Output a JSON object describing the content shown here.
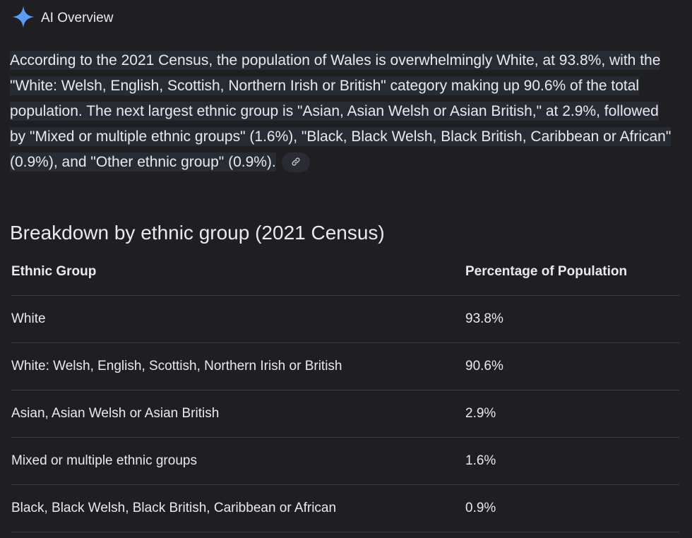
{
  "header": {
    "icon": "sparkle-icon",
    "title": "AI Overview",
    "accent": "#5b9cf6"
  },
  "paragraph": "According to the 2021 Census, the population of Wales is overwhelmingly White, at 93.8%, with the \"White: Welsh, English, Scottish, Northern Irish or British\" category making up 90.6% of the total population.  The next largest ethnic group is \"Asian, Asian Welsh or Asian British,\" at 2.9%, followed by \"Mixed or multiple ethnic groups\" (1.6%), \"Black, Black Welsh, Black British, Caribbean or African\" (0.9%), and \"Other ethnic group\" (0.9%).",
  "link_icon": "link-icon",
  "section_title": "Breakdown by ethnic group (2021 Census)",
  "table": {
    "headers": [
      "Ethnic Group",
      "Percentage of Population"
    ],
    "rows": [
      [
        "White",
        "93.8%"
      ],
      [
        "White: Welsh, English, Scottish, Northern Irish or British",
        "90.6%"
      ],
      [
        "Asian, Asian Welsh or Asian British",
        "2.9%"
      ],
      [
        "Mixed or multiple ethnic groups",
        "1.6%"
      ],
      [
        "Black, Black Welsh, Black British, Caribbean or African",
        "0.9%"
      ]
    ]
  }
}
